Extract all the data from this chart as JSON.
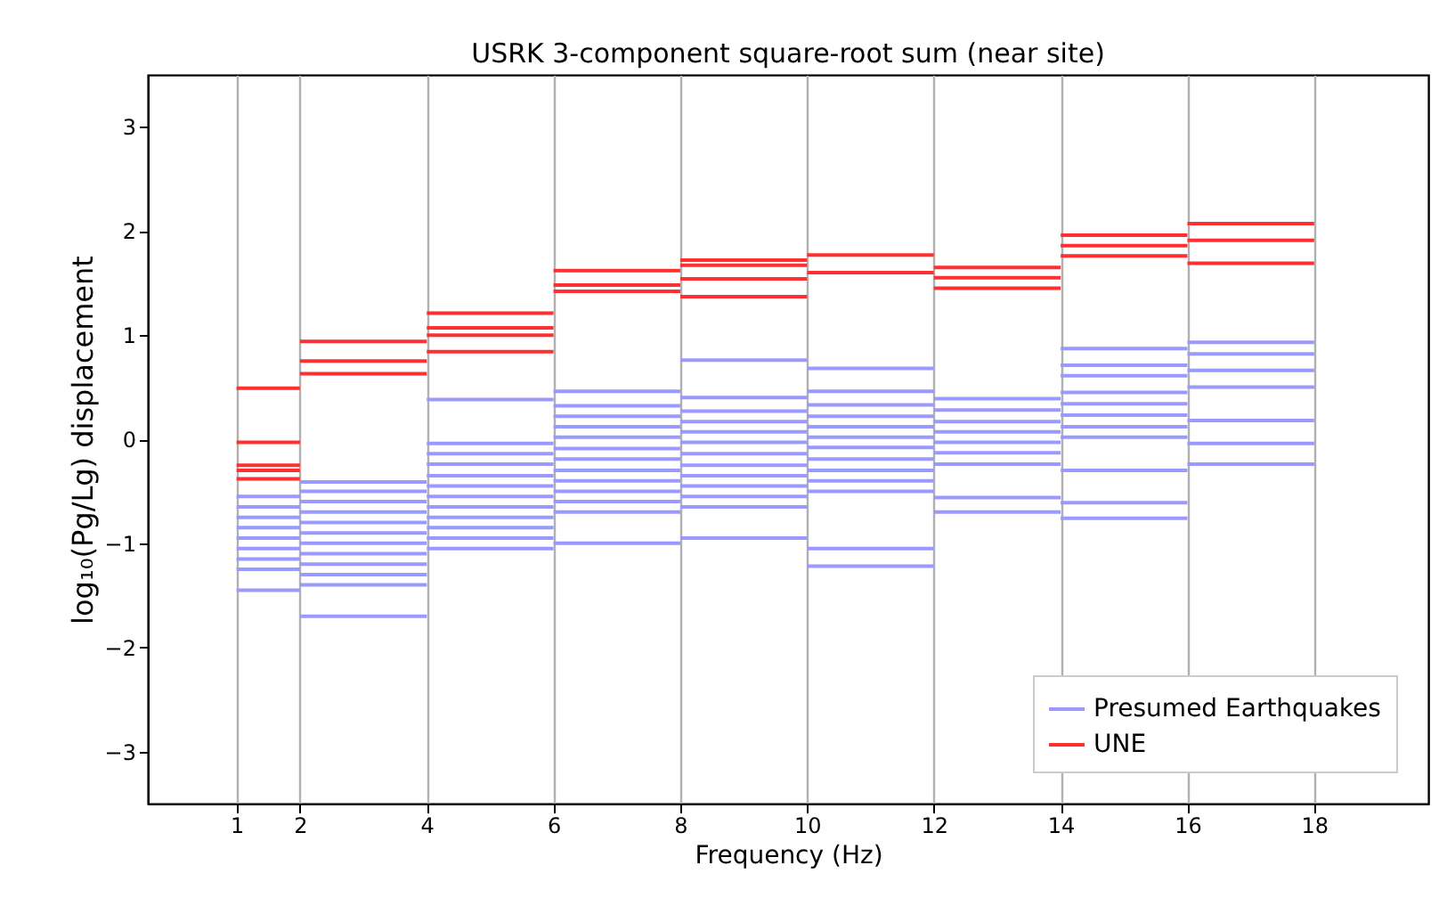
{
  "chart_data": {
    "type": "line",
    "title": "USRK 3-component square-root sum (near site)",
    "xlabel": "Frequency (Hz)",
    "ylabel": "log₁₀(Pg/Lg) displacement",
    "xlim": [
      -0.4,
      19.8
    ],
    "xticks": [
      1,
      2,
      4,
      6,
      8,
      10,
      12,
      14,
      16,
      18
    ],
    "ylim": [
      -3.5,
      3.5
    ],
    "yticks": [
      -3,
      -2,
      -1,
      0,
      1,
      2,
      3
    ],
    "grid": "x",
    "legend": "bottom right",
    "line_style": "solid",
    "series": [
      {
        "name": "Presumed Earthquakes",
        "color": "#9999ff",
        "x": [
          1,
          2
        ],
        "values": [
          -0.55,
          -0.55
        ]
      },
      {
        "color": "#9999ff",
        "x": [
          1,
          2
        ],
        "values": [
          -0.65,
          -0.65
        ]
      },
      {
        "color": "#9999ff",
        "x": [
          1,
          2
        ],
        "values": [
          -0.75,
          -0.75
        ]
      },
      {
        "color": "#9999ff",
        "x": [
          1,
          2
        ],
        "values": [
          -0.85,
          -0.85
        ]
      },
      {
        "color": "#9999ff",
        "x": [
          1,
          2
        ],
        "values": [
          -0.95,
          -0.95
        ]
      },
      {
        "color": "#9999ff",
        "x": [
          1,
          2
        ],
        "values": [
          -1.05,
          -1.05
        ]
      },
      {
        "color": "#9999ff",
        "x": [
          1,
          2
        ],
        "values": [
          -1.15,
          -1.15
        ]
      },
      {
        "color": "#9999ff",
        "x": [
          1,
          2
        ],
        "values": [
          -1.25,
          -1.25
        ]
      },
      {
        "color": "#9999ff",
        "x": [
          1,
          2
        ],
        "values": [
          -1.45,
          -1.45
        ]
      },
      {
        "color": "#9999ff",
        "x": [
          2,
          4
        ],
        "values": [
          -0.41,
          -0.41
        ]
      },
      {
        "color": "#9999ff",
        "x": [
          2,
          4
        ],
        "values": [
          -0.5,
          -0.5
        ]
      },
      {
        "color": "#9999ff",
        "x": [
          2,
          4
        ],
        "values": [
          -0.6,
          -0.6
        ]
      },
      {
        "color": "#9999ff",
        "x": [
          2,
          4
        ],
        "values": [
          -0.7,
          -0.7
        ]
      },
      {
        "color": "#9999ff",
        "x": [
          2,
          4
        ],
        "values": [
          -0.8,
          -0.8
        ]
      },
      {
        "color": "#9999ff",
        "x": [
          2,
          4
        ],
        "values": [
          -0.9,
          -0.9
        ]
      },
      {
        "color": "#9999ff",
        "x": [
          2,
          4
        ],
        "values": [
          -1.0,
          -1.0
        ]
      },
      {
        "color": "#9999ff",
        "x": [
          2,
          4
        ],
        "values": [
          -1.1,
          -1.1
        ]
      },
      {
        "color": "#9999ff",
        "x": [
          2,
          4
        ],
        "values": [
          -1.2,
          -1.2
        ]
      },
      {
        "color": "#9999ff",
        "x": [
          2,
          4
        ],
        "values": [
          -1.3,
          -1.3
        ]
      },
      {
        "color": "#9999ff",
        "x": [
          2,
          4
        ],
        "values": [
          -1.4,
          -1.4
        ]
      },
      {
        "color": "#9999ff",
        "x": [
          2,
          4
        ],
        "values": [
          -1.7,
          -1.7
        ]
      },
      {
        "color": "#9999ff",
        "x": [
          4,
          6
        ],
        "values": [
          0.38,
          0.38
        ]
      },
      {
        "color": "#9999ff",
        "x": [
          4,
          6
        ],
        "values": [
          -0.04,
          -0.04
        ]
      },
      {
        "color": "#9999ff",
        "x": [
          4,
          6
        ],
        "values": [
          -0.14,
          -0.14
        ]
      },
      {
        "color": "#9999ff",
        "x": [
          4,
          6
        ],
        "values": [
          -0.24,
          -0.24
        ]
      },
      {
        "color": "#9999ff",
        "x": [
          4,
          6
        ],
        "values": [
          -0.35,
          -0.35
        ]
      },
      {
        "color": "#9999ff",
        "x": [
          4,
          6
        ],
        "values": [
          -0.45,
          -0.45
        ]
      },
      {
        "color": "#9999ff",
        "x": [
          4,
          6
        ],
        "values": [
          -0.55,
          -0.55
        ]
      },
      {
        "color": "#9999ff",
        "x": [
          4,
          6
        ],
        "values": [
          -0.65,
          -0.65
        ]
      },
      {
        "color": "#9999ff",
        "x": [
          4,
          6
        ],
        "values": [
          -0.75,
          -0.75
        ]
      },
      {
        "color": "#9999ff",
        "x": [
          4,
          6
        ],
        "values": [
          -0.85,
          -0.85
        ]
      },
      {
        "color": "#9999ff",
        "x": [
          4,
          6
        ],
        "values": [
          -0.95,
          -0.95
        ]
      },
      {
        "color": "#9999ff",
        "x": [
          4,
          6
        ],
        "values": [
          -1.05,
          -1.05
        ]
      },
      {
        "color": "#9999ff",
        "x": [
          6,
          8
        ],
        "values": [
          0.46,
          0.46
        ]
      },
      {
        "color": "#9999ff",
        "x": [
          6,
          8
        ],
        "values": [
          0.32,
          0.32
        ]
      },
      {
        "color": "#9999ff",
        "x": [
          6,
          8
        ],
        "values": [
          0.22,
          0.22
        ]
      },
      {
        "color": "#9999ff",
        "x": [
          6,
          8
        ],
        "values": [
          0.12,
          0.12
        ]
      },
      {
        "color": "#9999ff",
        "x": [
          6,
          8
        ],
        "values": [
          0.02,
          0.02
        ]
      },
      {
        "color": "#9999ff",
        "x": [
          6,
          8
        ],
        "values": [
          -0.09,
          -0.09
        ]
      },
      {
        "color": "#9999ff",
        "x": [
          6,
          8
        ],
        "values": [
          -0.19,
          -0.19
        ]
      },
      {
        "color": "#9999ff",
        "x": [
          6,
          8
        ],
        "values": [
          -0.3,
          -0.3
        ]
      },
      {
        "color": "#9999ff",
        "x": [
          6,
          8
        ],
        "values": [
          -0.4,
          -0.4
        ]
      },
      {
        "color": "#9999ff",
        "x": [
          6,
          8
        ],
        "values": [
          -0.5,
          -0.5
        ]
      },
      {
        "color": "#9999ff",
        "x": [
          6,
          8
        ],
        "values": [
          -0.6,
          -0.6
        ]
      },
      {
        "color": "#9999ff",
        "x": [
          6,
          8
        ],
        "values": [
          -0.7,
          -0.7
        ]
      },
      {
        "color": "#9999ff",
        "x": [
          6,
          8
        ],
        "values": [
          -1.0,
          -1.0
        ]
      },
      {
        "color": "#9999ff",
        "x": [
          8,
          10
        ],
        "values": [
          0.76,
          0.76
        ]
      },
      {
        "color": "#9999ff",
        "x": [
          8,
          10
        ],
        "values": [
          0.4,
          0.4
        ]
      },
      {
        "color": "#9999ff",
        "x": [
          8,
          10
        ],
        "values": [
          0.27,
          0.27
        ]
      },
      {
        "color": "#9999ff",
        "x": [
          8,
          10
        ],
        "values": [
          0.17,
          0.17
        ]
      },
      {
        "color": "#9999ff",
        "x": [
          8,
          10
        ],
        "values": [
          0.07,
          0.07
        ]
      },
      {
        "color": "#9999ff",
        "x": [
          8,
          10
        ],
        "values": [
          -0.03,
          -0.03
        ]
      },
      {
        "color": "#9999ff",
        "x": [
          8,
          10
        ],
        "values": [
          -0.14,
          -0.14
        ]
      },
      {
        "color": "#9999ff",
        "x": [
          8,
          10
        ],
        "values": [
          -0.25,
          -0.25
        ]
      },
      {
        "color": "#9999ff",
        "x": [
          8,
          10
        ],
        "values": [
          -0.35,
          -0.35
        ]
      },
      {
        "color": "#9999ff",
        "x": [
          8,
          10
        ],
        "values": [
          -0.45,
          -0.45
        ]
      },
      {
        "color": "#9999ff",
        "x": [
          8,
          10
        ],
        "values": [
          -0.55,
          -0.55
        ]
      },
      {
        "color": "#9999ff",
        "x": [
          8,
          10
        ],
        "values": [
          -0.65,
          -0.65
        ]
      },
      {
        "color": "#9999ff",
        "x": [
          8,
          10
        ],
        "values": [
          -0.95,
          -0.95
        ]
      },
      {
        "color": "#9999ff",
        "x": [
          10,
          12
        ],
        "values": [
          0.68,
          0.68
        ]
      },
      {
        "color": "#9999ff",
        "x": [
          10,
          12
        ],
        "values": [
          0.46,
          0.46
        ]
      },
      {
        "color": "#9999ff",
        "x": [
          10,
          12
        ],
        "values": [
          0.33,
          0.33
        ]
      },
      {
        "color": "#9999ff",
        "x": [
          10,
          12
        ],
        "values": [
          0.22,
          0.22
        ]
      },
      {
        "color": "#9999ff",
        "x": [
          10,
          12
        ],
        "values": [
          0.12,
          0.12
        ]
      },
      {
        "color": "#9999ff",
        "x": [
          10,
          12
        ],
        "values": [
          0.02,
          0.02
        ]
      },
      {
        "color": "#9999ff",
        "x": [
          10,
          12
        ],
        "values": [
          -0.08,
          -0.08
        ]
      },
      {
        "color": "#9999ff",
        "x": [
          10,
          12
        ],
        "values": [
          -0.19,
          -0.19
        ]
      },
      {
        "color": "#9999ff",
        "x": [
          10,
          12
        ],
        "values": [
          -0.3,
          -0.3
        ]
      },
      {
        "color": "#9999ff",
        "x": [
          10,
          12
        ],
        "values": [
          -0.4,
          -0.4
        ]
      },
      {
        "color": "#9999ff",
        "x": [
          10,
          12
        ],
        "values": [
          -0.5,
          -0.5
        ]
      },
      {
        "color": "#9999ff",
        "x": [
          10,
          12
        ],
        "values": [
          -1.05,
          -1.05
        ]
      },
      {
        "color": "#9999ff",
        "x": [
          10,
          12
        ],
        "values": [
          -1.22,
          -1.22
        ]
      },
      {
        "color": "#9999ff",
        "x": [
          12,
          14
        ],
        "values": [
          0.39,
          0.39
        ]
      },
      {
        "color": "#9999ff",
        "x": [
          12,
          14
        ],
        "values": [
          0.28,
          0.28
        ]
      },
      {
        "color": "#9999ff",
        "x": [
          12,
          14
        ],
        "values": [
          0.17,
          0.17
        ]
      },
      {
        "color": "#9999ff",
        "x": [
          12,
          14
        ],
        "values": [
          0.07,
          0.07
        ]
      },
      {
        "color": "#9999ff",
        "x": [
          12,
          14
        ],
        "values": [
          -0.03,
          -0.03
        ]
      },
      {
        "color": "#9999ff",
        "x": [
          12,
          14
        ],
        "values": [
          -0.13,
          -0.13
        ]
      },
      {
        "color": "#9999ff",
        "x": [
          12,
          14
        ],
        "values": [
          -0.24,
          -0.24
        ]
      },
      {
        "color": "#9999ff",
        "x": [
          12,
          14
        ],
        "values": [
          -0.56,
          -0.56
        ]
      },
      {
        "color": "#9999ff",
        "x": [
          12,
          14
        ],
        "values": [
          -0.7,
          -0.7
        ]
      },
      {
        "color": "#9999ff",
        "x": [
          14,
          16
        ],
        "values": [
          0.87,
          0.87
        ]
      },
      {
        "color": "#9999ff",
        "x": [
          14,
          16
        ],
        "values": [
          0.71,
          0.71
        ]
      },
      {
        "color": "#9999ff",
        "x": [
          14,
          16
        ],
        "values": [
          0.61,
          0.61
        ]
      },
      {
        "color": "#9999ff",
        "x": [
          14,
          16
        ],
        "values": [
          0.45,
          0.45
        ]
      },
      {
        "color": "#9999ff",
        "x": [
          14,
          16
        ],
        "values": [
          0.34,
          0.34
        ]
      },
      {
        "color": "#9999ff",
        "x": [
          14,
          16
        ],
        "values": [
          0.23,
          0.23
        ]
      },
      {
        "color": "#9999ff",
        "x": [
          14,
          16
        ],
        "values": [
          0.12,
          0.12
        ]
      },
      {
        "color": "#9999ff",
        "x": [
          14,
          16
        ],
        "values": [
          0.02,
          0.02
        ]
      },
      {
        "color": "#9999ff",
        "x": [
          14,
          16
        ],
        "values": [
          -0.3,
          -0.3
        ]
      },
      {
        "color": "#9999ff",
        "x": [
          14,
          16
        ],
        "values": [
          -0.61,
          -0.61
        ]
      },
      {
        "color": "#9999ff",
        "x": [
          14,
          16
        ],
        "values": [
          -0.76,
          -0.76
        ]
      },
      {
        "color": "#9999ff",
        "x": [
          16,
          18
        ],
        "values": [
          0.93,
          0.93
        ]
      },
      {
        "color": "#9999ff",
        "x": [
          16,
          18
        ],
        "values": [
          0.82,
          0.82
        ]
      },
      {
        "color": "#9999ff",
        "x": [
          16,
          18
        ],
        "values": [
          0.66,
          0.66
        ]
      },
      {
        "color": "#9999ff",
        "x": [
          16,
          18
        ],
        "values": [
          0.5,
          0.5
        ]
      },
      {
        "color": "#9999ff",
        "x": [
          16,
          18
        ],
        "values": [
          0.18,
          0.18
        ]
      },
      {
        "color": "#9999ff",
        "x": [
          16,
          18
        ],
        "values": [
          -0.04,
          -0.04
        ]
      },
      {
        "color": "#9999ff",
        "x": [
          16,
          18
        ],
        "values": [
          -0.24,
          -0.24
        ]
      },
      {
        "name": "UNE",
        "color": "#ff3030",
        "x": [
          1,
          2
        ],
        "values": [
          0.49,
          0.49
        ]
      },
      {
        "color": "#ff3030",
        "x": [
          1,
          2
        ],
        "values": [
          -0.03,
          -0.03
        ]
      },
      {
        "color": "#ff3030",
        "x": [
          1,
          2
        ],
        "values": [
          -0.25,
          -0.25
        ]
      },
      {
        "color": "#ff3030",
        "x": [
          1,
          2
        ],
        "values": [
          -0.3,
          -0.3
        ]
      },
      {
        "color": "#ff3030",
        "x": [
          1,
          2
        ],
        "values": [
          -0.38,
          -0.38
        ]
      },
      {
        "color": "#ff3030",
        "x": [
          2,
          4
        ],
        "values": [
          0.94,
          0.94
        ]
      },
      {
        "color": "#ff3030",
        "x": [
          2,
          4
        ],
        "values": [
          0.75,
          0.75
        ]
      },
      {
        "color": "#ff3030",
        "x": [
          2,
          4
        ],
        "values": [
          0.63,
          0.63
        ]
      },
      {
        "color": "#ff3030",
        "x": [
          4,
          6
        ],
        "values": [
          1.21,
          1.21
        ]
      },
      {
        "color": "#ff3030",
        "x": [
          4,
          6
        ],
        "values": [
          1.07,
          1.07
        ]
      },
      {
        "color": "#ff3030",
        "x": [
          4,
          6
        ],
        "values": [
          1.0,
          1.0
        ]
      },
      {
        "color": "#ff3030",
        "x": [
          4,
          6
        ],
        "values": [
          0.84,
          0.84
        ]
      },
      {
        "color": "#ff3030",
        "x": [
          6,
          8
        ],
        "values": [
          1.62,
          1.62
        ]
      },
      {
        "color": "#ff3030",
        "x": [
          6,
          8
        ],
        "values": [
          1.48,
          1.48
        ]
      },
      {
        "color": "#ff3030",
        "x": [
          6,
          8
        ],
        "values": [
          1.42,
          1.42
        ]
      },
      {
        "color": "#ff3030",
        "x": [
          8,
          10
        ],
        "values": [
          1.72,
          1.72
        ]
      },
      {
        "color": "#ff3030",
        "x": [
          8,
          10
        ],
        "values": [
          1.67,
          1.67
        ]
      },
      {
        "color": "#ff3030",
        "x": [
          8,
          10
        ],
        "values": [
          1.54,
          1.54
        ]
      },
      {
        "color": "#ff3030",
        "x": [
          8,
          10
        ],
        "values": [
          1.37,
          1.37
        ]
      },
      {
        "color": "#ff3030",
        "x": [
          10,
          12
        ],
        "values": [
          1.77,
          1.77
        ]
      },
      {
        "color": "#ff3030",
        "x": [
          10,
          12
        ],
        "values": [
          1.6,
          1.6
        ]
      },
      {
        "color": "#ff3030",
        "x": [
          12,
          14
        ],
        "values": [
          1.65,
          1.65
        ]
      },
      {
        "color": "#ff3030",
        "x": [
          12,
          14
        ],
        "values": [
          1.55,
          1.55
        ]
      },
      {
        "color": "#ff3030",
        "x": [
          12,
          14
        ],
        "values": [
          1.45,
          1.45
        ]
      },
      {
        "color": "#ff3030",
        "x": [
          14,
          16
        ],
        "values": [
          1.96,
          1.96
        ]
      },
      {
        "color": "#ff3030",
        "x": [
          14,
          16
        ],
        "values": [
          1.86,
          1.86
        ]
      },
      {
        "color": "#ff3030",
        "x": [
          14,
          16
        ],
        "values": [
          1.76,
          1.76
        ]
      },
      {
        "color": "#ff3030",
        "x": [
          16,
          18
        ],
        "values": [
          2.07,
          2.07
        ]
      },
      {
        "color": "#ff3030",
        "x": [
          16,
          18
        ],
        "values": [
          1.91,
          1.91
        ]
      },
      {
        "color": "#ff3030",
        "x": [
          16,
          18
        ],
        "values": [
          1.69,
          1.69
        ]
      }
    ]
  }
}
